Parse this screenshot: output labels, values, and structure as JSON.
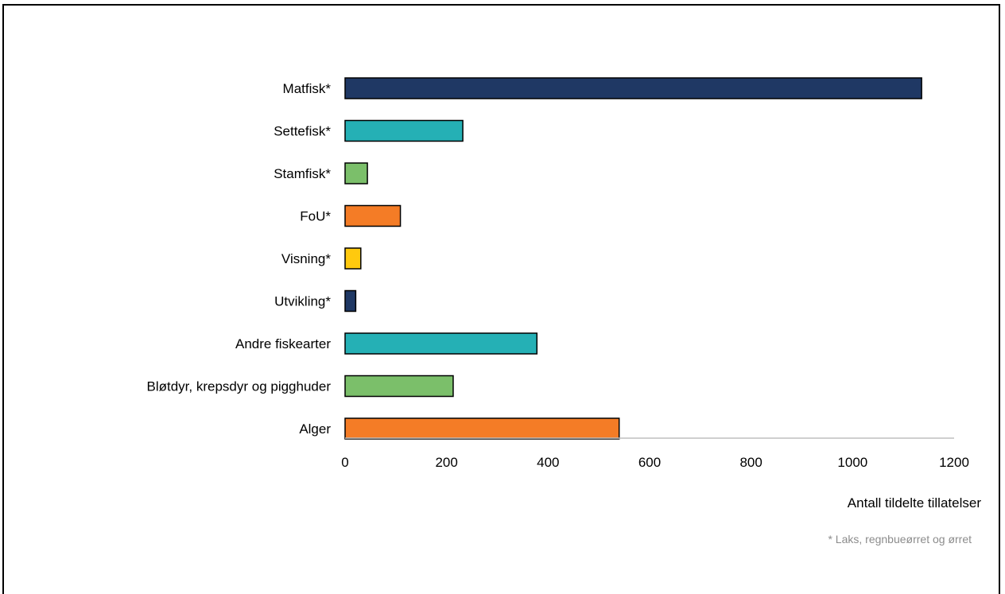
{
  "chart_data": {
    "type": "bar",
    "orientation": "horizontal",
    "categories": [
      "Matfisk*",
      "Settefisk*",
      "Stamfisk*",
      "FoU*",
      "Visning*",
      "Utvikling*",
      "Andre fiskearter",
      "Bløtdyr, krepsdyr og pigghuder",
      "Alger"
    ],
    "values": [
      1136,
      232,
      44,
      109,
      31,
      21,
      378,
      213,
      540
    ],
    "colors": [
      "#1f3864",
      "#25b0b5",
      "#7bbf6a",
      "#f47c26",
      "#ffc90e",
      "#1f3864",
      "#25b0b5",
      "#7bbf6a",
      "#f47c26"
    ],
    "xlabel": "Antall tildelte tillatelser",
    "xlim": [
      0,
      1200
    ],
    "xticks": [
      0,
      200,
      400,
      600,
      800,
      1000,
      1200
    ],
    "grid": false,
    "footnote": "* Laks, regnbueørret og ørret"
  }
}
